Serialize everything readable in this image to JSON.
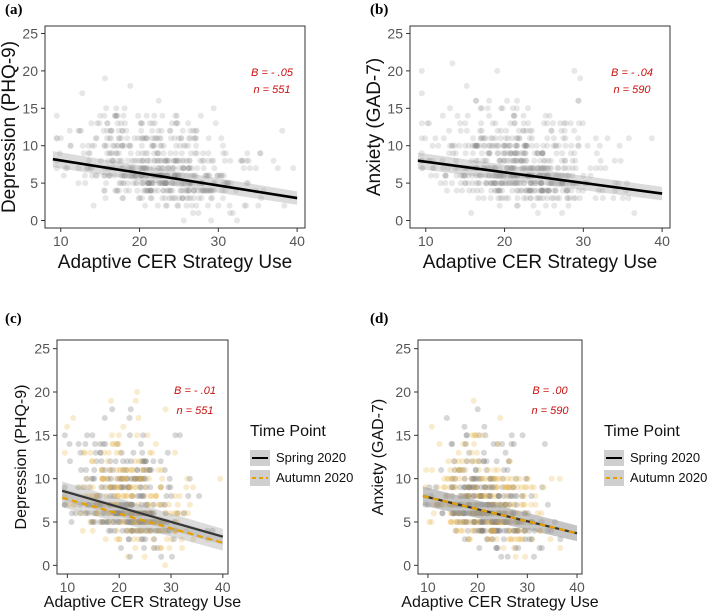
{
  "chart_data": [
    {
      "panel": "(a)",
      "type": "scatter",
      "xlabel": "Adaptive CER Strategy Use",
      "ylabel": "Depression (PHQ-9)",
      "xlim": [
        8,
        41
      ],
      "ylim": [
        -1,
        26
      ],
      "xticks": [
        10,
        20,
        30,
        40
      ],
      "yticks": [
        0,
        5,
        10,
        15,
        20,
        25
      ],
      "annotation": {
        "B": "B = - .05",
        "n": "n = 551"
      },
      "series": [
        {
          "line": {
            "x": [
              9,
              40
            ],
            "y": [
              8.2,
              3.0
            ]
          },
          "color": "#000000",
          "dash": "solid"
        }
      ],
      "legend": null
    },
    {
      "panel": "(b)",
      "type": "scatter",
      "xlabel": "Adaptive CER Strategy Use",
      "ylabel": "Anxiety (GAD-7)",
      "xlim": [
        8,
        41
      ],
      "ylim": [
        -1,
        26
      ],
      "xticks": [
        10,
        20,
        30,
        40
      ],
      "yticks": [
        0,
        5,
        10,
        15,
        20,
        25
      ],
      "annotation": {
        "B": "B = - .04",
        "n": "n = 590"
      },
      "series": [
        {
          "line": {
            "x": [
              9,
              40
            ],
            "y": [
              8.0,
              3.6
            ]
          },
          "color": "#000000",
          "dash": "solid"
        }
      ],
      "legend": null
    },
    {
      "panel": "(c)",
      "type": "scatter",
      "xlabel": "Adaptive CER Strategy Use",
      "ylabel": "Depression (PHQ-9)",
      "xlim": [
        8,
        41
      ],
      "ylim": [
        -1,
        26
      ],
      "xticks": [
        10,
        20,
        30,
        40
      ],
      "yticks": [
        0,
        5,
        10,
        15,
        20,
        25
      ],
      "annotation": {
        "B": "B = - .01",
        "n": "n = 551"
      },
      "series": [
        {
          "name": "Spring 2020",
          "line": {
            "x": [
              9,
              40
            ],
            "y": [
              8.6,
              3.3
            ]
          },
          "color": "#000000",
          "dash": "solid"
        },
        {
          "name": "Autumn 2020",
          "line": {
            "x": [
              9,
              40
            ],
            "y": [
              7.8,
              2.6
            ]
          },
          "color": "#e6a100",
          "dash": "dashed"
        }
      ],
      "legend": {
        "title": "Time Point",
        "position": "right"
      }
    },
    {
      "panel": "(d)",
      "type": "scatter",
      "xlabel": "Adaptive CER Strategy Use",
      "ylabel": "Anxiety (GAD-7)",
      "xlim": [
        8,
        41
      ],
      "ylim": [
        -1,
        26
      ],
      "xticks": [
        10,
        20,
        30,
        40
      ],
      "yticks": [
        0,
        5,
        10,
        15,
        20,
        25
      ],
      "annotation": {
        "B": "B =   .00",
        "n": "n = 590"
      },
      "series": [
        {
          "name": "Spring 2020",
          "line": {
            "x": [
              9,
              40
            ],
            "y": [
              8.0,
              3.7
            ]
          },
          "color": "#000000",
          "dash": "solid"
        },
        {
          "name": "Autumn 2020",
          "line": {
            "x": [
              9,
              40
            ],
            "y": [
              8.0,
              3.7
            ]
          },
          "color": "#e6a100",
          "dash": "dashed"
        }
      ],
      "legend": {
        "title": "Time Point",
        "position": "right"
      }
    }
  ]
}
